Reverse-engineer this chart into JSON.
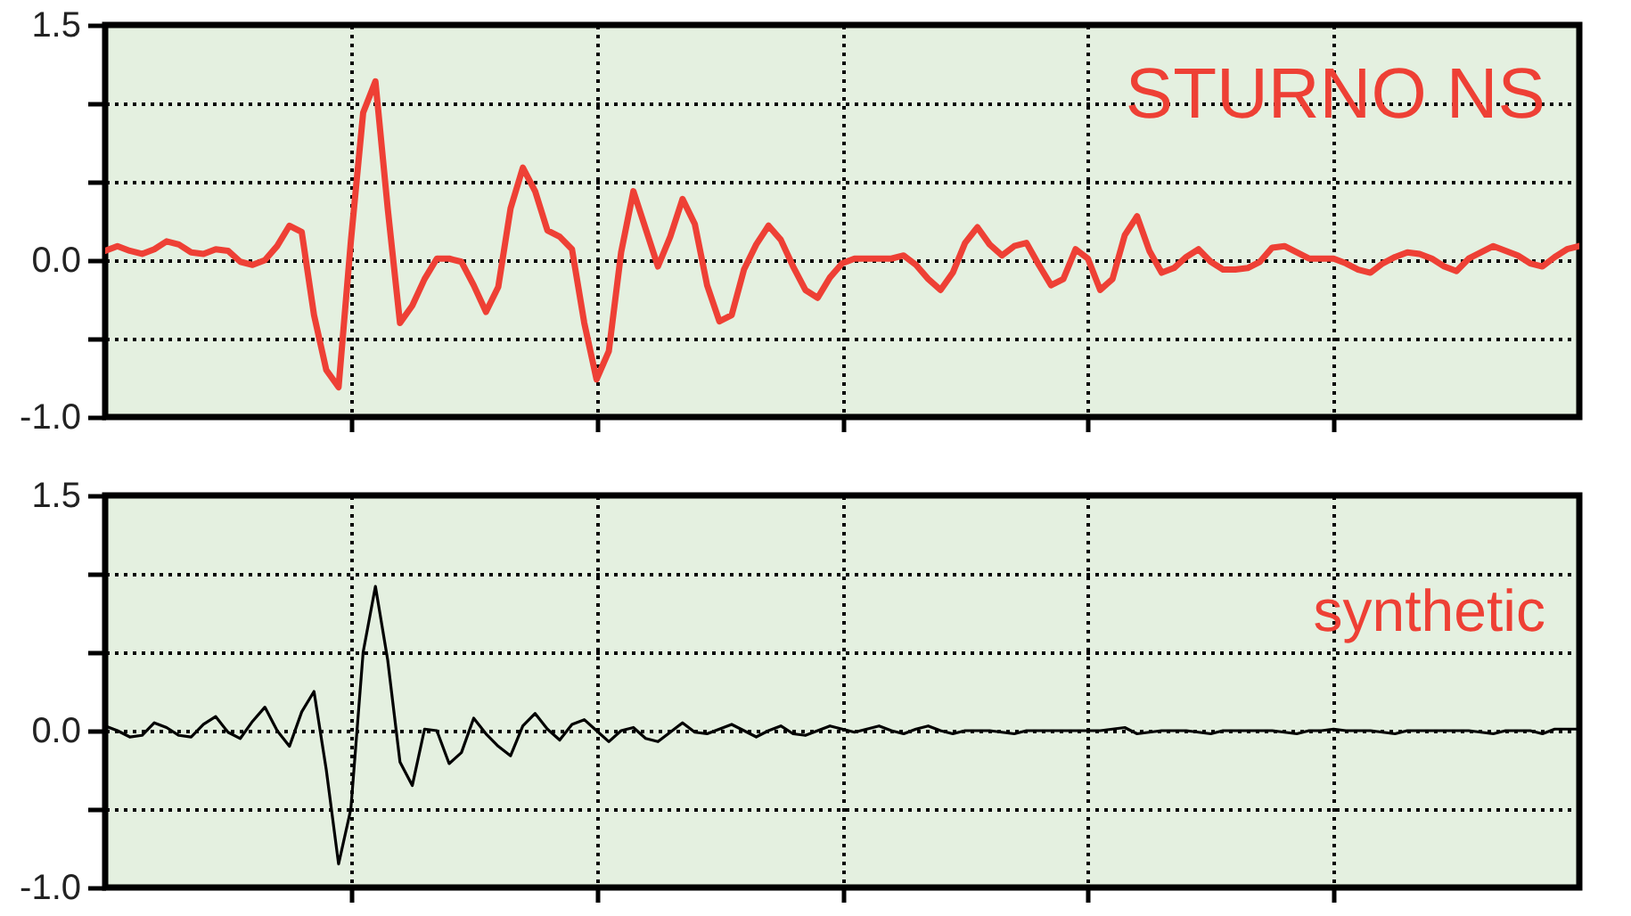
{
  "chart_data": [
    {
      "type": "line",
      "annotations": [
        "STURNO NS"
      ],
      "categories": [
        null,
        null,
        null,
        null,
        null,
        null,
        null,
        null,
        null,
        null,
        null,
        null,
        null,
        null,
        null,
        null,
        null,
        null,
        null,
        null,
        null,
        null,
        null,
        null,
        null,
        null,
        null,
        null,
        null,
        null,
        null,
        null,
        null,
        null,
        null,
        null,
        null,
        null,
        null,
        null,
        null,
        null,
        null,
        null,
        null,
        null,
        null,
        null,
        null,
        null,
        null,
        null,
        null,
        null,
        null,
        null,
        null,
        null,
        null,
        null,
        null,
        null,
        null,
        null,
        null,
        null,
        null,
        null,
        null,
        null,
        null,
        null,
        null,
        null,
        null,
        null,
        null,
        null,
        null,
        null,
        null,
        null,
        null,
        null,
        null,
        null,
        null,
        null,
        null,
        null,
        null,
        null,
        null,
        null,
        null,
        null,
        null,
        null,
        null,
        null,
        null,
        null,
        null,
        null,
        null,
        null,
        null,
        null,
        null,
        null,
        null,
        null,
        null,
        null,
        null,
        null,
        null,
        null,
        null,
        null,
        null
      ],
      "ylim": [
        -1,
        1.5
      ],
      "yticks": [
        {
          "value": -1,
          "label": "-1.0"
        },
        {
          "value": -0.5,
          "label": null
        },
        {
          "value": 0,
          "label": "0.0"
        },
        {
          "value": 0.5,
          "label": null
        },
        {
          "value": 1,
          "label": null
        },
        {
          "value": 1.5,
          "label": "1.5"
        }
      ],
      "grid": true,
      "tick_labels": "y",
      "line_style": "solid",
      "series": [
        {
          "color": "#ee4035",
          "values": [
            0.06,
            0.09,
            0.06,
            0.04,
            0.07,
            0.12,
            0.1,
            0.05,
            0.04,
            0.07,
            0.06,
            -0.01,
            -0.03,
            0,
            0.09,
            0.22,
            0.18,
            -0.35,
            -0.7,
            -0.81,
            0.12,
            0.94,
            1.14,
            0.33,
            -0.4,
            -0.29,
            -0.12,
            0.01,
            0.01,
            -0.01,
            -0.16,
            -0.33,
            -0.17,
            0.33,
            0.59,
            0.44,
            0.19,
            0.15,
            0.07,
            -0.4,
            -0.76,
            -0.58,
            0.05,
            0.44,
            0.2,
            -0.04,
            0.15,
            0.39,
            0.23,
            -0.16,
            -0.39,
            -0.35,
            -0.06,
            0.1,
            0.22,
            0.13,
            -0.04,
            -0.19,
            -0.24,
            -0.11,
            -0.02,
            0.01,
            0.01,
            0.01,
            0.01,
            0.03,
            -0.03,
            -0.12,
            -0.19,
            -0.08,
            0.11,
            0.21,
            0.1,
            0.03,
            0.09,
            0.11,
            -0.03,
            -0.16,
            -0.12,
            0.07,
            0.01,
            -0.19,
            -0.12,
            0.16,
            0.28,
            0.06,
            -0.08,
            -0.05,
            0.02,
            0.07,
            -0.01,
            -0.06,
            -0.06,
            -0.05,
            -0.01,
            0.08,
            0.09,
            0.05,
            0.01,
            0.01,
            0.01,
            -0.02,
            -0.06,
            -0.08,
            -0.02,
            0.02,
            0.05,
            0.04,
            0.01,
            -0.04,
            -0.07,
            0.01,
            0.05,
            0.09,
            0.06,
            0.03,
            -0.02,
            -0.04,
            0.02,
            0.07,
            0.09
          ]
        }
      ]
    },
    {
      "type": "line",
      "annotations": [
        "synthetic"
      ],
      "categories": [
        null,
        null,
        null,
        null,
        null,
        null,
        null,
        null,
        null,
        null,
        null,
        null,
        null,
        null,
        null,
        null,
        null,
        null,
        null,
        null,
        null,
        null,
        null,
        null,
        null,
        null,
        null,
        null,
        null,
        null,
        null,
        null,
        null,
        null,
        null,
        null,
        null,
        null,
        null,
        null,
        null,
        null,
        null,
        null,
        null,
        null,
        null,
        null,
        null,
        null,
        null,
        null,
        null,
        null,
        null,
        null,
        null,
        null,
        null,
        null,
        null,
        null,
        null,
        null,
        null,
        null,
        null,
        null,
        null,
        null,
        null,
        null,
        null,
        null,
        null,
        null,
        null,
        null,
        null,
        null,
        null,
        null,
        null,
        null,
        null,
        null,
        null,
        null,
        null,
        null,
        null,
        null,
        null,
        null,
        null,
        null,
        null,
        null,
        null,
        null,
        null,
        null,
        null,
        null,
        null,
        null,
        null,
        null,
        null,
        null,
        null,
        null,
        null,
        null,
        null,
        null,
        null,
        null,
        null,
        null,
        null
      ],
      "ylim": [
        -1,
        1.5
      ],
      "yticks": [
        {
          "value": -1,
          "label": "-1.0"
        },
        {
          "value": -0.5,
          "label": null
        },
        {
          "value": 0,
          "label": "0.0"
        },
        {
          "value": 0.5,
          "label": null
        },
        {
          "value": 1,
          "label": null
        },
        {
          "value": 1.5,
          "label": "1.5"
        }
      ],
      "grid": true,
      "tick_labels": "y",
      "line_style": "solid",
      "series": [
        {
          "color": "#000000",
          "values": [
            0.03,
            0,
            -0.04,
            -0.03,
            0.05,
            0.02,
            -0.03,
            -0.04,
            0.04,
            0.09,
            -0.01,
            -0.05,
            0.06,
            0.15,
            0,
            -0.1,
            0.12,
            0.25,
            -0.25,
            -0.85,
            -0.5,
            0.5,
            0.92,
            0.45,
            -0.2,
            -0.35,
            0.01,
            0,
            -0.21,
            -0.14,
            0.08,
            -0.02,
            -0.1,
            -0.16,
            0.03,
            0.11,
            0.01,
            -0.06,
            0.04,
            0.07,
            0,
            -0.07,
            0,
            0.02,
            -0.05,
            -0.07,
            -0.01,
            0.05,
            -0.01,
            -0.02,
            0.01,
            0.04,
            0,
            -0.04,
            0,
            0.03,
            -0.02,
            -0.03,
            0,
            0.03,
            0.01,
            -0.01,
            0.01,
            0.03,
            0,
            -0.02,
            0.01,
            0.03,
            0,
            -0.02,
            0,
            0,
            0,
            -0.01,
            -0.02,
            0,
            0,
            0,
            0,
            0,
            0,
            0,
            0.01,
            0.02,
            -0.02,
            -0.01,
            0,
            0,
            0,
            -0.01,
            -0.02,
            0,
            0,
            0,
            0,
            0,
            -0.01,
            -0.02,
            0,
            0,
            0.01,
            0,
            0,
            0,
            -0.01,
            -0.02,
            0,
            0,
            0,
            0,
            0,
            0,
            -0.01,
            -0.02,
            0,
            0,
            0,
            -0.02,
            0.01,
            0.01,
            0.01
          ]
        }
      ]
    }
  ]
}
